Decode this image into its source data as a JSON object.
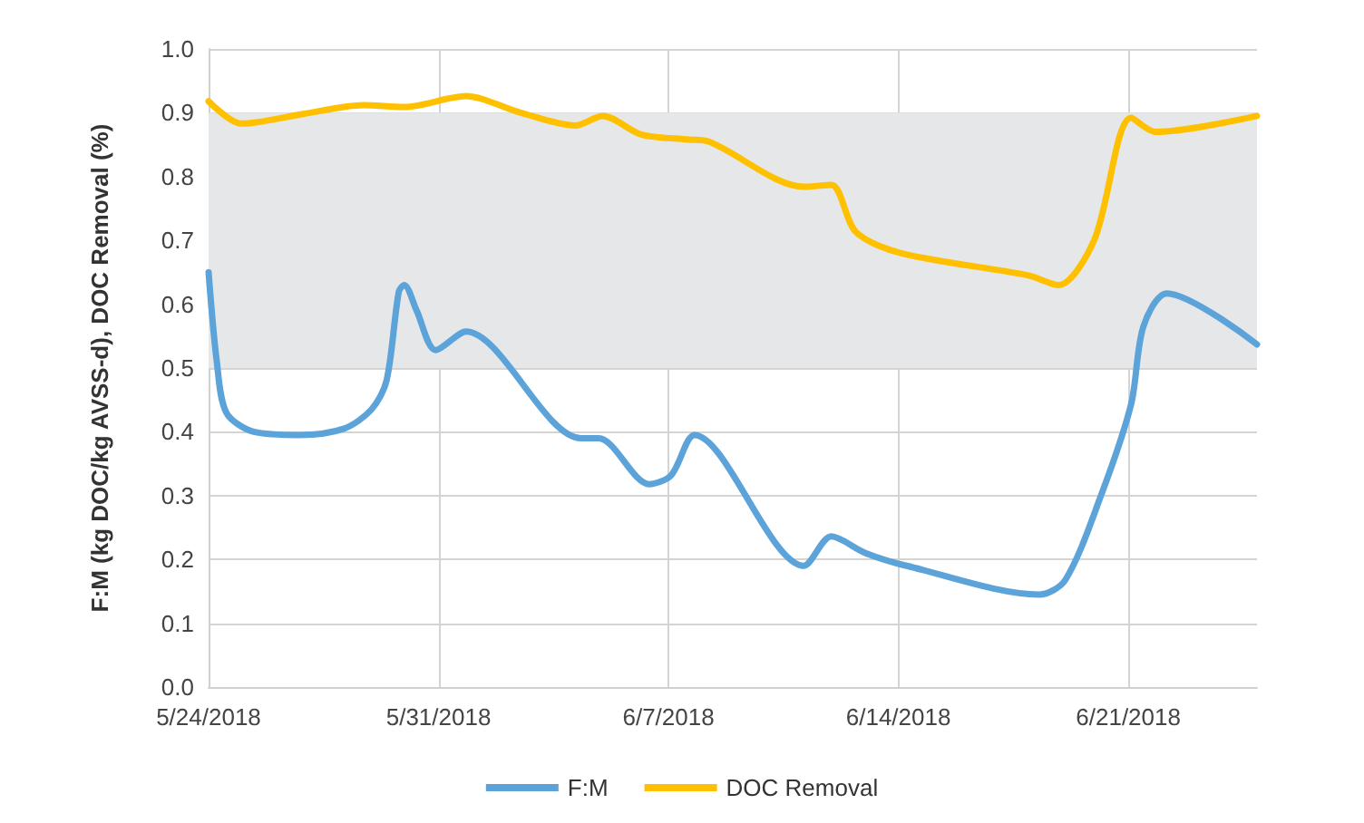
{
  "chart_data": {
    "type": "line",
    "ylabel": "F:M (kg DOC/kg AVSS-d), DOC Removal (%)",
    "xlim": [
      "2018-05-24",
      "2018-06-24T22:00"
    ],
    "xticks": [
      {
        "value": "2018-05-24",
        "label": "5/24/2018"
      },
      {
        "value": "2018-05-31",
        "label": "5/31/2018"
      },
      {
        "value": "2018-06-07",
        "label": "6/7/2018"
      },
      {
        "value": "2018-06-14",
        "label": "6/14/2018"
      },
      {
        "value": "2018-06-21",
        "label": "6/21/2018"
      }
    ],
    "ylim": [
      0,
      1
    ],
    "yticks": [
      {
        "value": 0,
        "label": "0.0"
      },
      {
        "value": 0.1,
        "label": "0.1"
      },
      {
        "value": 0.2,
        "label": "0.2"
      },
      {
        "value": 0.3,
        "label": "0.3"
      },
      {
        "value": 0.4,
        "label": "0.4"
      },
      {
        "value": 0.5,
        "label": "0.5"
      },
      {
        "value": 0.6,
        "label": "0.6"
      },
      {
        "value": 0.7,
        "label": "0.7"
      },
      {
        "value": 0.8,
        "label": "0.8"
      },
      {
        "value": 0.9,
        "label": "0.9"
      },
      {
        "value": 1,
        "label": "1.0"
      }
    ],
    "grid": true,
    "legend": "bottom",
    "marker": "none",
    "line_style": "solid",
    "bands": [
      {
        "axis": "y",
        "from": 0.5,
        "to": 0.9,
        "color": "#e6e7e9"
      }
    ],
    "series": [
      {
        "name": "F:M",
        "color": "#5ba3d9",
        "x": [
          "2018-05-24T00:00",
          "2018-05-24T06:00",
          "2018-05-24T13:00",
          "2018-05-25T09:00",
          "2018-05-26T18:00",
          "2018-05-28T03:00",
          "2018-05-28T23:00",
          "2018-05-29T10:00",
          "2018-05-29T19:00",
          "2018-05-29T23:00",
          "2018-05-30T08:00",
          "2018-05-30T22:00",
          "2018-05-31T20:00",
          "2018-06-04T08:00",
          "2018-06-04T21:00",
          "2018-06-06T10:00",
          "2018-06-07T02:00",
          "2018-06-07T19:00",
          "2018-06-11T03:00",
          "2018-06-11T23:00",
          "2018-06-13T00:00",
          "2018-06-14T06:00",
          "2018-06-18T07:00",
          "2018-06-19T02:00",
          "2018-06-20T04:00",
          "2018-06-21T02:00",
          "2018-06-21T11:00",
          "2018-06-22T04:00",
          "2018-06-24T22:00"
        ],
        "values": [
          0.65,
          0.51,
          0.43,
          0.4,
          0.395,
          0.405,
          0.435,
          0.48,
          0.62,
          0.63,
          0.59,
          0.528,
          0.557,
          0.39,
          0.39,
          0.318,
          0.332,
          0.395,
          0.19,
          0.236,
          0.21,
          0.19,
          0.145,
          0.168,
          0.3,
          0.443,
          0.565,
          0.617,
          0.537
        ]
      },
      {
        "name": "DOC Removal",
        "color": "#ffc000",
        "x": [
          "2018-05-24T00:00",
          "2018-05-25T00:00",
          "2018-05-26T21:00",
          "2018-05-28T17:00",
          "2018-05-29T23:00",
          "2018-05-31T20:00",
          "2018-06-02T12:00",
          "2018-06-04T04:00",
          "2018-06-05T00:00",
          "2018-06-06T04:00",
          "2018-06-07T15:00",
          "2018-06-08T05:00",
          "2018-06-11T03:00",
          "2018-06-11T23:00",
          "2018-06-12T17:00",
          "2018-06-14T02:00",
          "2018-06-17T23:00",
          "2018-06-18T21:00",
          "2018-06-19T23:00",
          "2018-06-21T02:00",
          "2018-06-21T20:00",
          "2018-06-24T22:00"
        ],
        "values": [
          0.918,
          0.883,
          0.898,
          0.912,
          0.909,
          0.926,
          0.9,
          0.88,
          0.895,
          0.866,
          0.858,
          0.855,
          0.784,
          0.787,
          0.713,
          0.68,
          0.645,
          0.63,
          0.7,
          0.892,
          0.87,
          0.895
        ]
      }
    ]
  }
}
